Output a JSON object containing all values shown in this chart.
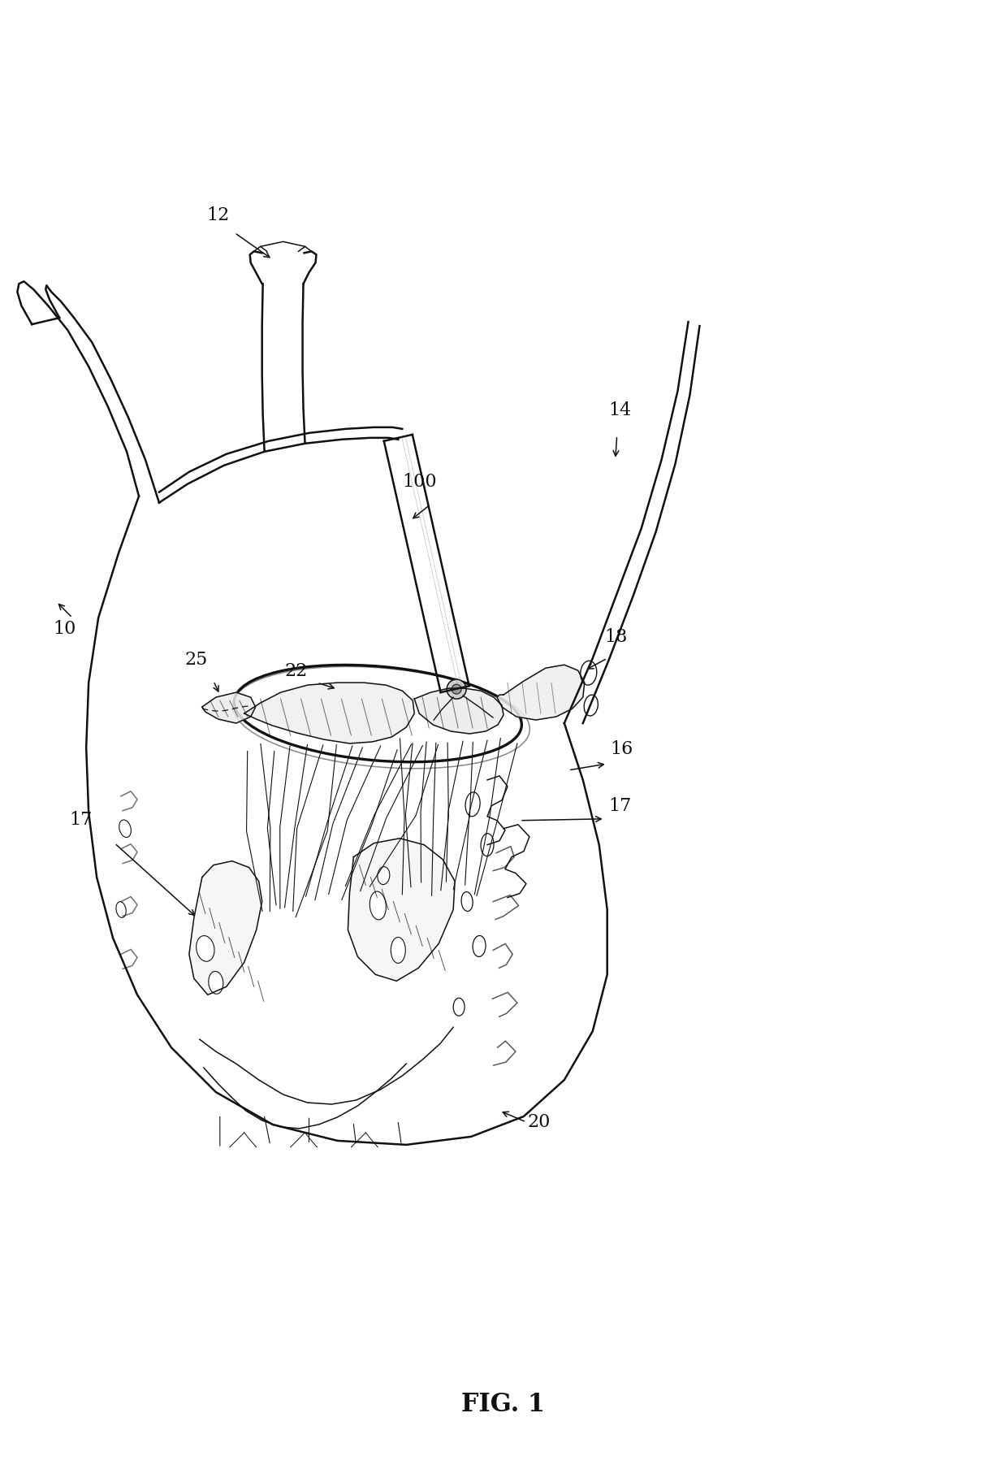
{
  "bg_color": "#ffffff",
  "line_color": "#111111",
  "fig_caption": "FIG. 1",
  "lw_main": 1.8,
  "lw_thick": 2.4,
  "lw_thin": 1.1,
  "lw_hair": 0.75,
  "font_size": 16,
  "fig_font_size": 22,
  "dpi": 100,
  "figsize": [
    12.4,
    18.19
  ]
}
